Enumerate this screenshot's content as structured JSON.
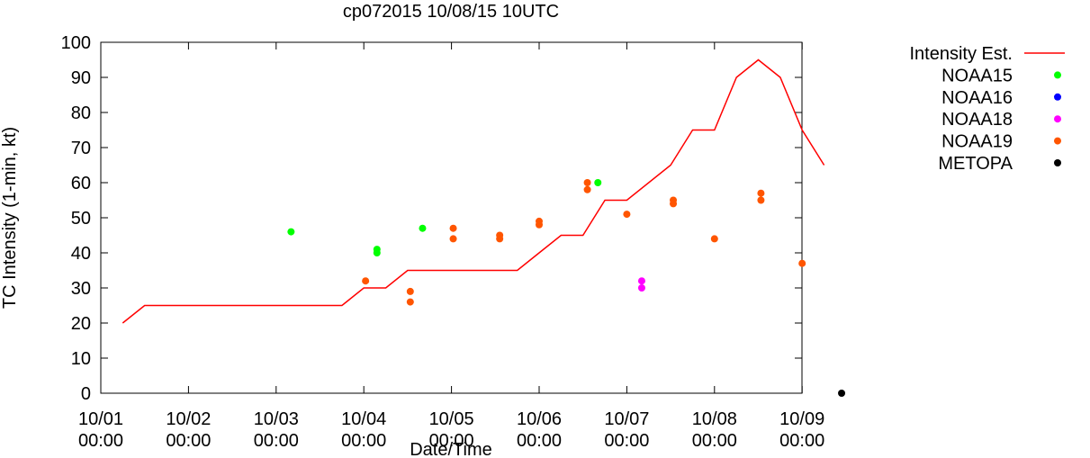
{
  "chart_data": {
    "type": "line",
    "title": "cp072015 10/08/15 10UTC",
    "xlabel": "Date/Time",
    "ylabel": "TC Intensity (1-min, kt)",
    "xlim": [
      0,
      8
    ],
    "ylim": [
      0,
      100
    ],
    "y_ticks": [
      0,
      10,
      20,
      30,
      40,
      50,
      60,
      70,
      80,
      90,
      100
    ],
    "x_ticks": [
      {
        "x": 0,
        "line1": "10/01",
        "line2": "00:00"
      },
      {
        "x": 1,
        "line1": "10/02",
        "line2": "00:00"
      },
      {
        "x": 2,
        "line1": "10/03",
        "line2": "00:00"
      },
      {
        "x": 3,
        "line1": "10/04",
        "line2": "00:00"
      },
      {
        "x": 4,
        "line1": "10/05",
        "line2": "00:00"
      },
      {
        "x": 5,
        "line1": "10/06",
        "line2": "00:00"
      },
      {
        "x": 6,
        "line1": "10/07",
        "line2": "00:00"
      },
      {
        "x": 7,
        "line1": "10/08",
        "line2": "00:00"
      },
      {
        "x": 8,
        "line1": "10/09",
        "line2": "00:00"
      }
    ],
    "x_units": "days since 10/01 00:00",
    "grid": false,
    "legend_position": "outside-right",
    "series": [
      {
        "name": "Intensity Est.",
        "kind": "line",
        "color": "#ff0000",
        "points": [
          [
            0.25,
            20
          ],
          [
            0.5,
            25
          ],
          [
            2.75,
            25
          ],
          [
            3.0,
            30
          ],
          [
            3.25,
            30
          ],
          [
            3.5,
            35
          ],
          [
            4.75,
            35
          ],
          [
            5.0,
            40
          ],
          [
            5.25,
            45
          ],
          [
            5.5,
            45
          ],
          [
            5.75,
            55
          ],
          [
            6.0,
            55
          ],
          [
            6.5,
            65
          ],
          [
            6.75,
            75
          ],
          [
            7.0,
            75
          ],
          [
            7.25,
            90
          ],
          [
            7.5,
            95
          ],
          [
            7.75,
            90
          ],
          [
            8.0,
            75
          ],
          [
            8.25,
            65
          ]
        ]
      },
      {
        "name": "NOAA15",
        "kind": "points",
        "color": "#00ff00",
        "points": [
          [
            2.17,
            46
          ],
          [
            3.15,
            41
          ],
          [
            3.15,
            40
          ],
          [
            3.67,
            47
          ],
          [
            5.67,
            60
          ]
        ]
      },
      {
        "name": "NOAA16",
        "kind": "points",
        "color": "#0000ff",
        "points": []
      },
      {
        "name": "NOAA18",
        "kind": "points",
        "color": "#ff00ff",
        "points": [
          [
            6.17,
            32
          ],
          [
            6.17,
            30
          ]
        ]
      },
      {
        "name": "NOAA19",
        "kind": "points",
        "color": "#ff5500",
        "points": [
          [
            3.02,
            32
          ],
          [
            3.53,
            29
          ],
          [
            3.53,
            26
          ],
          [
            4.02,
            47
          ],
          [
            4.02,
            44
          ],
          [
            4.55,
            45
          ],
          [
            4.55,
            44
          ],
          [
            5.0,
            49
          ],
          [
            5.0,
            48
          ],
          [
            5.55,
            60
          ],
          [
            5.55,
            58
          ],
          [
            6.0,
            51
          ],
          [
            6.53,
            55
          ],
          [
            6.53,
            54
          ],
          [
            7.0,
            44
          ],
          [
            7.53,
            57
          ],
          [
            7.53,
            55
          ],
          [
            8.0,
            37
          ]
        ]
      },
      {
        "name": "METOPA",
        "kind": "points",
        "color": "#000000",
        "points": [
          [
            8.45,
            0
          ]
        ]
      }
    ]
  }
}
